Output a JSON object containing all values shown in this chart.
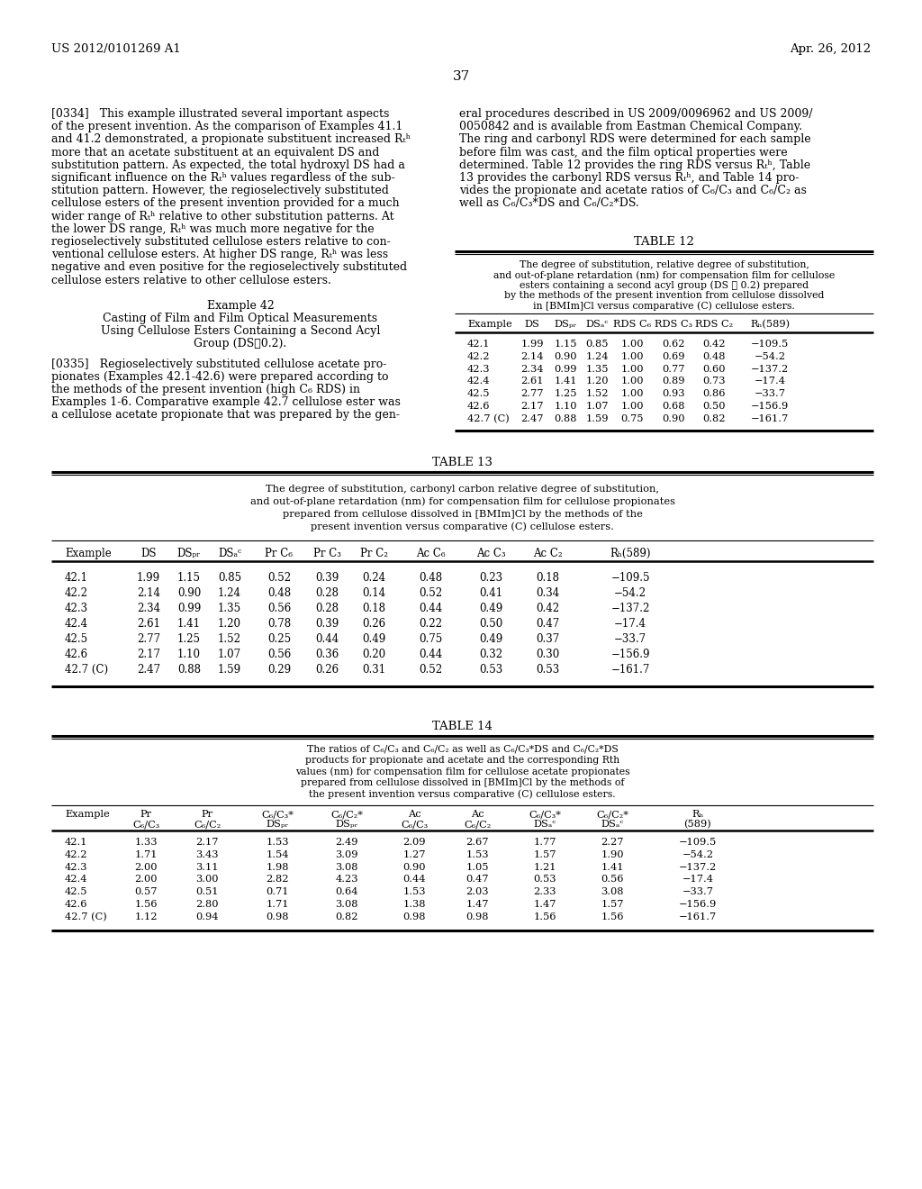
{
  "header_left": "US 2012/0101269 A1",
  "header_right": "Apr. 26, 2012",
  "page_number": "37",
  "table12_title": "TABLE 12",
  "table12_caption_lines": [
    "The degree of substitution, relative degree of substitution,",
    "and out-of-plane retardation (nm) for compensation film for cellulose",
    "esters containing a second acyl group (DS ≧ 0.2) prepared",
    "by the methods of the present invention from cellulose dissolved",
    "in [BMIm]Cl versus comparative (C) cellulose esters."
  ],
  "table12_headers": [
    "Example",
    "DS",
    "DSₚᵣ",
    "DSₐᶜ",
    "RDS C₆",
    "RDS C₃",
    "RDS C₂",
    "Rₕ(589)"
  ],
  "table12_data": [
    [
      "42.1",
      "1.99",
      "1.15",
      "0.85",
      "1.00",
      "0.62",
      "0.42",
      "−109.5"
    ],
    [
      "42.2",
      "2.14",
      "0.90",
      "1.24",
      "1.00",
      "0.69",
      "0.48",
      "−54.2"
    ],
    [
      "42.3",
      "2.34",
      "0.99",
      "1.35",
      "1.00",
      "0.77",
      "0.60",
      "−137.2"
    ],
    [
      "42.4",
      "2.61",
      "1.41",
      "1.20",
      "1.00",
      "0.89",
      "0.73",
      "−17.4"
    ],
    [
      "42.5",
      "2.77",
      "1.25",
      "1.52",
      "1.00",
      "0.93",
      "0.86",
      "−33.7"
    ],
    [
      "42.6",
      "2.17",
      "1.10",
      "1.07",
      "1.00",
      "0.68",
      "0.50",
      "−156.9"
    ],
    [
      "42.7 (C)",
      "2.47",
      "0.88",
      "1.59",
      "0.75",
      "0.90",
      "0.82",
      "−161.7"
    ]
  ],
  "table13_title": "TABLE 13",
  "table13_caption_lines": [
    "The degree of substitution, carbonyl carbon relative degree of substitution,",
    "and out-of-plane retardation (nm) for compensation film for cellulose propionates",
    "prepared from cellulose dissolved in [BMIm]Cl by the methods of the",
    "present invention versus comparative (C) cellulose esters."
  ],
  "table13_headers": [
    "Example",
    "DS",
    "DSₚᵣ",
    "DSₐᶜ",
    "Pr C₆",
    "Pr C₃",
    "Pr C₂",
    "Ac C₆",
    "Ac C₃",
    "Ac C₂",
    "Rₕ(589)"
  ],
  "table13_data": [
    [
      "42.1",
      "1.99",
      "1.15",
      "0.85",
      "0.52",
      "0.39",
      "0.24",
      "0.48",
      "0.23",
      "0.18",
      "−109.5"
    ],
    [
      "42.2",
      "2.14",
      "0.90",
      "1.24",
      "0.48",
      "0.28",
      "0.14",
      "0.52",
      "0.41",
      "0.34",
      "−54.2"
    ],
    [
      "42.3",
      "2.34",
      "0.99",
      "1.35",
      "0.56",
      "0.28",
      "0.18",
      "0.44",
      "0.49",
      "0.42",
      "−137.2"
    ],
    [
      "42.4",
      "2.61",
      "1.41",
      "1.20",
      "0.78",
      "0.39",
      "0.26",
      "0.22",
      "0.50",
      "0.47",
      "−17.4"
    ],
    [
      "42.5",
      "2.77",
      "1.25",
      "1.52",
      "0.25",
      "0.44",
      "0.49",
      "0.75",
      "0.49",
      "0.37",
      "−33.7"
    ],
    [
      "42.6",
      "2.17",
      "1.10",
      "1.07",
      "0.56",
      "0.36",
      "0.20",
      "0.44",
      "0.32",
      "0.30",
      "−156.9"
    ],
    [
      "42.7 (C)",
      "2.47",
      "0.88",
      "1.59",
      "0.29",
      "0.26",
      "0.31",
      "0.52",
      "0.53",
      "0.53",
      "−161.7"
    ]
  ],
  "table14_title": "TABLE 14",
  "table14_caption_lines": [
    "The ratios of C₆/C₃ and C₆/C₂ as well as C₆/C₃*DS and C₆/C₂*DS",
    "products for propionate and acetate and the corresponding Rth",
    "values (nm) for compensation film for cellulose acetate propionates",
    "prepared from cellulose dissolved in [BMIm]Cl by the methods of",
    "the present invention versus comparative (C) cellulose esters."
  ],
  "table14_headers_l1": [
    "Example",
    "Pr",
    "Pr",
    "C₆/C₃*",
    "C₆/C₂*",
    "Ac",
    "Ac",
    "C₆/C₃*",
    "C₆/C₂*",
    "Rₕ"
  ],
  "table14_headers_l2": [
    "",
    "C₆/C₃",
    "C₆/C₂",
    "DSₚᵣ",
    "DSₚᵣ",
    "C₆/C₃",
    "C₆/C₂",
    "DSₐᶜ",
    "DSₐᶜ",
    "(589)"
  ],
  "table14_data": [
    [
      "42.1",
      "1.33",
      "2.17",
      "1.53",
      "2.49",
      "2.09",
      "2.67",
      "1.77",
      "2.27",
      "−109.5"
    ],
    [
      "42.2",
      "1.71",
      "3.43",
      "1.54",
      "3.09",
      "1.27",
      "1.53",
      "1.57",
      "1.90",
      "−54.2"
    ],
    [
      "42.3",
      "2.00",
      "3.11",
      "1.98",
      "3.08",
      "0.90",
      "1.05",
      "1.21",
      "1.41",
      "−137.2"
    ],
    [
      "42.4",
      "2.00",
      "3.00",
      "2.82",
      "4.23",
      "0.44",
      "0.47",
      "0.53",
      "0.56",
      "−17.4"
    ],
    [
      "42.5",
      "0.57",
      "0.51",
      "0.71",
      "0.64",
      "1.53",
      "2.03",
      "2.33",
      "3.08",
      "−33.7"
    ],
    [
      "42.6",
      "1.56",
      "2.80",
      "1.71",
      "3.08",
      "1.38",
      "1.47",
      "1.47",
      "1.57",
      "−156.9"
    ],
    [
      "42.7 (C)",
      "1.12",
      "0.94",
      "0.98",
      "0.82",
      "0.98",
      "0.98",
      "1.56",
      "1.56",
      "−161.7"
    ]
  ],
  "bg_color": "#ffffff",
  "text_color": "#000000"
}
